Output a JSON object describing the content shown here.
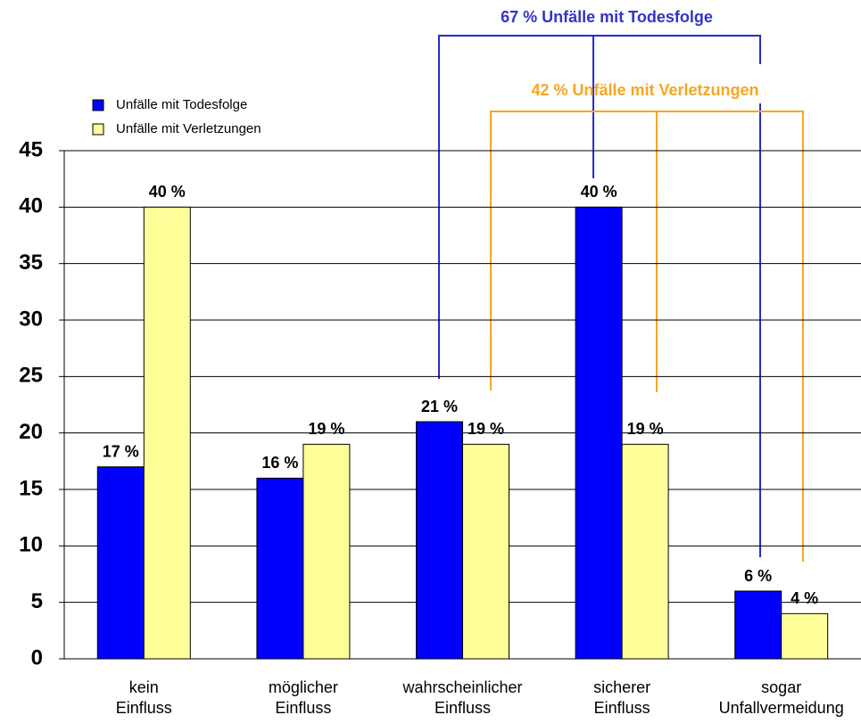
{
  "chart_data": {
    "type": "bar",
    "categories": [
      "kein\nEinfluss",
      "möglicher\nEinfluss",
      "wahrscheinlicher\nEinfluss",
      "sicherer\nEinfluss",
      "sogar\nUnfallvermeidung"
    ],
    "series": [
      {
        "name": "Unfälle mit Todesfolge",
        "color": "#0000ff",
        "values": [
          17,
          16,
          21,
          40,
          6
        ],
        "value_labels": [
          "17 %",
          "16 %",
          "21 %",
          "40 %",
          "6 %"
        ]
      },
      {
        "name": "Unfälle mit Verletzungen",
        "color": "#ffff99",
        "values": [
          40,
          19,
          19,
          19,
          4
        ],
        "value_labels": [
          "40 %",
          "19 %",
          "19 %",
          "19 %",
          "4 %"
        ]
      }
    ],
    "ylim": [
      0,
      45
    ],
    "yticks": [
      0,
      5,
      10,
      15,
      20,
      25,
      30,
      35,
      40,
      45
    ],
    "grid": true,
    "annotations": [
      "67 % Unfälle mit Todesfolge",
      "42 % Unfälle mit Verletzungen"
    ]
  }
}
